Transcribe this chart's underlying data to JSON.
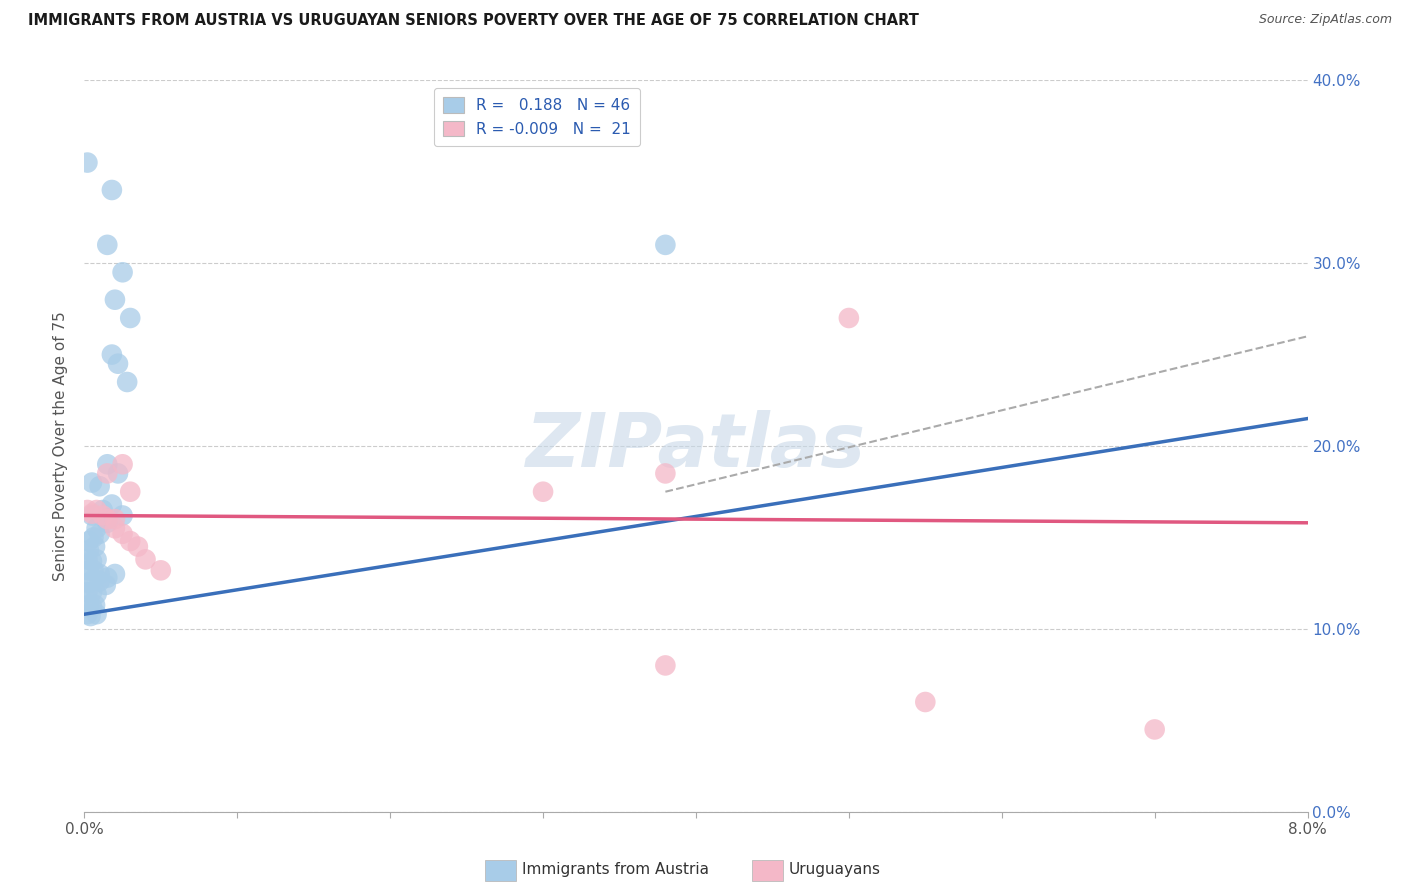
{
  "title": "IMMIGRANTS FROM AUSTRIA VS URUGUAYAN SENIORS POVERTY OVER THE AGE OF 75 CORRELATION CHART",
  "source": "Source: ZipAtlas.com",
  "ylabel": "Seniors Poverty Over the Age of 75",
  "xmin": 0.0,
  "xmax": 0.08,
  "ymin": 0.0,
  "ymax": 0.4,
  "xtick_positions": [
    0.0,
    0.01,
    0.02,
    0.03,
    0.04,
    0.05,
    0.06,
    0.07,
    0.08
  ],
  "xtick_labels": [
    "0.0%",
    "",
    "",
    "",
    "",
    "",
    "",
    "",
    "8.0%"
  ],
  "yticks": [
    0.0,
    0.1,
    0.2,
    0.3,
    0.4
  ],
  "ytick_labels_right": [
    "0.0%",
    "10.0%",
    "20.0%",
    "30.0%",
    "40.0%"
  ],
  "blue_color": "#a8cce8",
  "pink_color": "#f4b8c8",
  "line_blue": "#3a6fba",
  "line_pink": "#e05880",
  "line_dashed_color": "#aaaaaa",
  "watermark": "ZIPatlas",
  "blue_scatter": [
    [
      0.0002,
      0.355
    ],
    [
      0.0018,
      0.34
    ],
    [
      0.0015,
      0.31
    ],
    [
      0.0025,
      0.295
    ],
    [
      0.002,
      0.28
    ],
    [
      0.003,
      0.27
    ],
    [
      0.0018,
      0.25
    ],
    [
      0.0022,
      0.245
    ],
    [
      0.0028,
      0.235
    ],
    [
      0.0015,
      0.19
    ],
    [
      0.0022,
      0.185
    ],
    [
      0.0005,
      0.18
    ],
    [
      0.001,
      0.178
    ],
    [
      0.038,
      0.31
    ],
    [
      0.0005,
      0.162
    ],
    [
      0.0012,
      0.165
    ],
    [
      0.0018,
      0.168
    ],
    [
      0.0025,
      0.162
    ],
    [
      0.0008,
      0.155
    ],
    [
      0.0015,
      0.158
    ],
    [
      0.0003,
      0.148
    ],
    [
      0.0006,
      0.15
    ],
    [
      0.001,
      0.152
    ],
    [
      0.0003,
      0.143
    ],
    [
      0.0007,
      0.145
    ],
    [
      0.0002,
      0.138
    ],
    [
      0.0005,
      0.137
    ],
    [
      0.0008,
      0.138
    ],
    [
      0.0003,
      0.132
    ],
    [
      0.0006,
      0.132
    ],
    [
      0.001,
      0.13
    ],
    [
      0.0015,
      0.128
    ],
    [
      0.002,
      0.13
    ],
    [
      0.0003,
      0.125
    ],
    [
      0.0006,
      0.127
    ],
    [
      0.001,
      0.126
    ],
    [
      0.0014,
      0.124
    ],
    [
      0.0002,
      0.12
    ],
    [
      0.0005,
      0.12
    ],
    [
      0.0008,
      0.119
    ],
    [
      0.0003,
      0.113
    ],
    [
      0.0005,
      0.112
    ],
    [
      0.0007,
      0.113
    ],
    [
      0.0002,
      0.108
    ],
    [
      0.0004,
      0.107
    ],
    [
      0.0008,
      0.108
    ]
  ],
  "pink_scatter": [
    [
      0.0002,
      0.165
    ],
    [
      0.0005,
      0.163
    ],
    [
      0.0008,
      0.165
    ],
    [
      0.0012,
      0.162
    ],
    [
      0.0015,
      0.16
    ],
    [
      0.002,
      0.16
    ],
    [
      0.0015,
      0.185
    ],
    [
      0.0025,
      0.19
    ],
    [
      0.003,
      0.175
    ],
    [
      0.002,
      0.155
    ],
    [
      0.0025,
      0.152
    ],
    [
      0.003,
      0.148
    ],
    [
      0.0035,
      0.145
    ],
    [
      0.004,
      0.138
    ],
    [
      0.005,
      0.132
    ],
    [
      0.03,
      0.175
    ],
    [
      0.038,
      0.185
    ],
    [
      0.05,
      0.27
    ],
    [
      0.038,
      0.08
    ],
    [
      0.055,
      0.06
    ],
    [
      0.07,
      0.045
    ]
  ],
  "blue_line_x": [
    0.0,
    0.08
  ],
  "blue_line_y": [
    0.108,
    0.215
  ],
  "pink_line_x": [
    0.0,
    0.08
  ],
  "pink_line_y": [
    0.162,
    0.158
  ],
  "dashed_line_x": [
    0.038,
    0.08
  ],
  "dashed_line_y": [
    0.175,
    0.26
  ],
  "background_color": "#ffffff",
  "grid_color": "#cccccc"
}
